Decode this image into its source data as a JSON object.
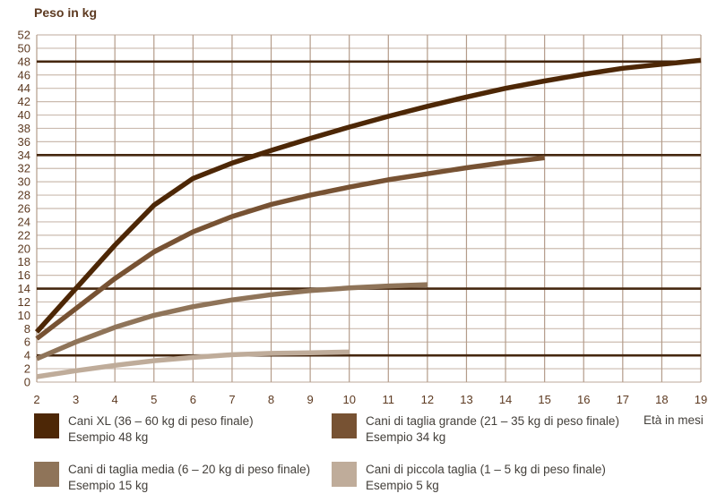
{
  "title": "Peso in kg",
  "colors": {
    "grid_horizontal": "#cbbbaf",
    "grid_vertical": "#b49c8a",
    "reference_line": "#45270f",
    "axis_text": "#5d3a21",
    "legend_text": "#44403b",
    "background": "#ffffff"
  },
  "chart_data": {
    "type": "line",
    "title": "Peso in kg",
    "xlabel": "Età in mesi",
    "ylabel": "Peso in kg",
    "xlim": [
      2,
      19
    ],
    "ylim": [
      0,
      52
    ],
    "x_tick_step": 1,
    "y_tick_step": 2,
    "grid": true,
    "legend_position": "bottom",
    "reference_lines_kg": [
      48,
      34,
      14,
      4
    ],
    "series": [
      {
        "name": "Cani XL (36 – 60 kg di peso finale)",
        "example": "Esempio 48 kg",
        "color": "#4d2706",
        "points": [
          [
            2,
            7.5
          ],
          [
            3,
            14
          ],
          [
            4,
            20.5
          ],
          [
            5,
            26.5
          ],
          [
            6,
            30.5
          ],
          [
            7,
            32.8
          ],
          [
            8,
            34.7
          ],
          [
            9,
            36.5
          ],
          [
            10,
            38.2
          ],
          [
            11,
            39.8
          ],
          [
            12,
            41.3
          ],
          [
            13,
            42.7
          ],
          [
            14,
            44
          ],
          [
            15,
            45.1
          ],
          [
            16,
            46.1
          ],
          [
            17,
            47
          ],
          [
            18,
            47.6
          ],
          [
            19,
            48.2
          ]
        ]
      },
      {
        "name": "Cani di taglia grande (21 – 35 kg di peso finale)",
        "example": "Esempio 34 kg",
        "color": "#775233",
        "points": [
          [
            2,
            6.5
          ],
          [
            3,
            11
          ],
          [
            4,
            15.5
          ],
          [
            5,
            19.5
          ],
          [
            6,
            22.5
          ],
          [
            7,
            24.8
          ],
          [
            8,
            26.6
          ],
          [
            9,
            28
          ],
          [
            10,
            29.2
          ],
          [
            11,
            30.3
          ],
          [
            12,
            31.2
          ],
          [
            13,
            32.1
          ],
          [
            14,
            32.9
          ],
          [
            15,
            33.6
          ]
        ]
      },
      {
        "name": "Cani di taglia media (6 – 20 kg di peso finale)",
        "example": "Esempio 15 kg",
        "color": "#8f7459",
        "points": [
          [
            2,
            3.5
          ],
          [
            3,
            6
          ],
          [
            4,
            8.2
          ],
          [
            5,
            10
          ],
          [
            6,
            11.3
          ],
          [
            7,
            12.3
          ],
          [
            8,
            13.1
          ],
          [
            9,
            13.7
          ],
          [
            10,
            14.1
          ],
          [
            11,
            14.4
          ],
          [
            12,
            14.6
          ]
        ]
      },
      {
        "name": "Cani di piccola taglia (1 – 5 kg di peso finale)",
        "example": "Esempio 5 kg",
        "color": "#bfac9a",
        "points": [
          [
            2,
            0.8
          ],
          [
            3,
            1.7
          ],
          [
            4,
            2.5
          ],
          [
            5,
            3.2
          ],
          [
            6,
            3.7
          ],
          [
            7,
            4.1
          ],
          [
            8,
            4.3
          ],
          [
            9,
            4.4
          ],
          [
            10,
            4.5
          ]
        ]
      }
    ]
  },
  "legend": {
    "items": [
      {
        "label": "Cani XL (36 – 60 kg di peso finale)",
        "example": "Esempio 48 kg",
        "color": "#4d2706"
      },
      {
        "label": "Cani di taglia grande (21 – 35 kg di peso finale)",
        "example": "Esempio 34 kg",
        "color": "#775233"
      },
      {
        "label": "Cani di taglia media (6 – 20 kg di peso finale)",
        "example": "Esempio 15 kg",
        "color": "#8f7459"
      },
      {
        "label": "Cani di piccola taglia (1 – 5 kg di peso finale)",
        "example": "Esempio 5 kg",
        "color": "#bfac9a"
      }
    ]
  }
}
